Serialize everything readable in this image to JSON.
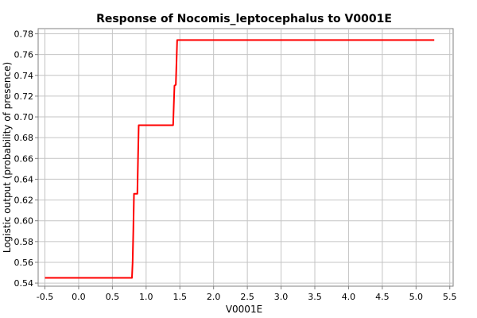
{
  "chart_data": {
    "type": "line",
    "title": "Response of Nocomis_leptocephalus to V0001E",
    "xlabel": "V0001E",
    "ylabel": "Logistic output (probability of presence)",
    "xlim": [
      -0.6,
      5.55
    ],
    "ylim": [
      0.537,
      0.785
    ],
    "x_ticks": [
      -0.5,
      0.0,
      0.5,
      1.0,
      1.5,
      2.0,
      2.5,
      3.0,
      3.5,
      4.0,
      4.5,
      5.0,
      5.5
    ],
    "x_tick_labels": [
      "-0.5",
      "0.0",
      "0.5",
      "1.0",
      "1.5",
      "2.0",
      "2.5",
      "3.0",
      "3.5",
      "4.0",
      "4.5",
      "5.0",
      "5.5"
    ],
    "y_ticks": [
      0.54,
      0.56,
      0.58,
      0.6,
      0.62,
      0.64,
      0.66,
      0.68,
      0.7,
      0.72,
      0.74,
      0.76,
      0.78
    ],
    "y_tick_labels": [
      "0.54",
      "0.56",
      "0.58",
      "0.60",
      "0.62",
      "0.64",
      "0.66",
      "0.68",
      "0.70",
      "0.72",
      "0.74",
      "0.76",
      "0.78"
    ],
    "grid": true,
    "series": [
      {
        "color": "#ff0000",
        "x": [
          -0.5,
          0.79,
          0.8,
          0.81,
          0.82,
          0.87,
          0.88,
          0.89,
          1.4,
          1.41,
          1.42,
          1.44,
          1.45,
          1.46,
          5.27
        ],
        "y": [
          0.545,
          0.545,
          0.56,
          0.59,
          0.626,
          0.626,
          0.66,
          0.692,
          0.692,
          0.711,
          0.73,
          0.731,
          0.752,
          0.774,
          0.774
        ]
      }
    ]
  }
}
